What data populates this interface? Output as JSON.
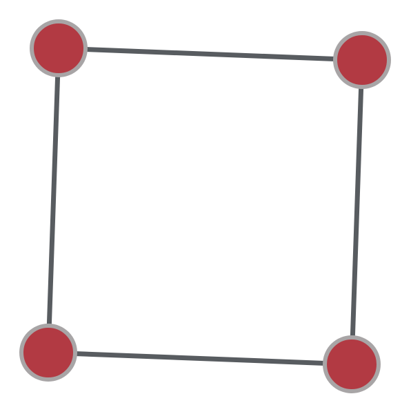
{
  "diagram": {
    "type": "graph",
    "nodes": [
      {
        "id": "top-left"
      },
      {
        "id": "top-right"
      },
      {
        "id": "bottom-left"
      },
      {
        "id": "bottom-right"
      }
    ],
    "edges": [
      {
        "from": "top-left",
        "to": "top-right"
      },
      {
        "from": "top-right",
        "to": "bottom-right"
      },
      {
        "from": "bottom-right",
        "to": "bottom-left"
      },
      {
        "from": "bottom-left",
        "to": "top-left"
      }
    ],
    "colors": {
      "background": "#ffffff",
      "edge": "#585c60",
      "node_fill": "#b23a43",
      "node_stroke": "#a8a5a6"
    }
  }
}
